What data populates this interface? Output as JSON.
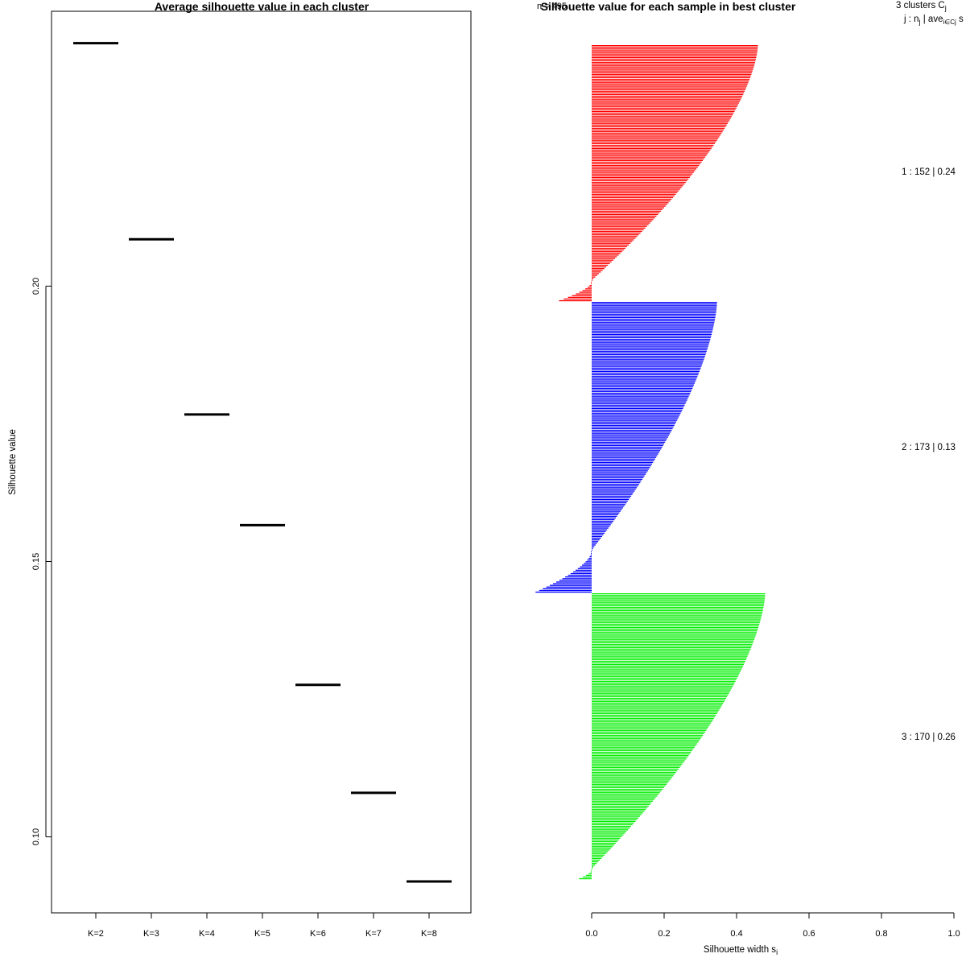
{
  "chart_data": [
    {
      "type": "line",
      "title": "Average silhouette value in each cluster",
      "xlabel": "",
      "ylabel": "Silhouette value",
      "ylim": [
        0.0862,
        0.2499
      ],
      "yticks": [
        0.1,
        0.15,
        0.2
      ],
      "ytick_labels": [
        "0.10",
        "0.15",
        "0.20"
      ],
      "categories": [
        "K=2",
        "K=3",
        "K=4",
        "K=5",
        "K=6",
        "K=7",
        "K=8"
      ],
      "values": [
        0.2441,
        0.2085,
        0.1767,
        0.1566,
        0.1276,
        0.108,
        0.0919
      ]
    },
    {
      "type": "bar",
      "title": "Silhouette value for each sample in best cluster",
      "overlay_label": "n = 495",
      "xlabel": "Silhouette width s",
      "xlabel_sub": "i",
      "xlim": [
        0.0,
        1.0
      ],
      "xticks": [
        0.0,
        0.2,
        0.4,
        0.6,
        0.8,
        1.0
      ],
      "xtick_labels": [
        "0.0",
        "0.2",
        "0.4",
        "0.6",
        "0.8",
        "1.0"
      ],
      "legend_header_1": "3  clusters  C",
      "legend_header_1_sub": "j",
      "legend_header_2a": "j :  n",
      "legend_header_2b": " | ave",
      "legend_header_2c": "  s",
      "legend_sub_j": "j",
      "legend_sub_iecj": "i∈Cj",
      "clusters": [
        {
          "id": 1,
          "n": 152,
          "avg_label": "0.24",
          "label": "1 :   152  |  0.24",
          "color": "#ff0000",
          "max": 0.455,
          "min": -0.09,
          "npos": 140
        },
        {
          "id": 2,
          "n": 173,
          "avg_label": "0.13",
          "label": "2 :   173  |  0.13",
          "color": "#0000ff",
          "max": 0.342,
          "min": -0.155,
          "npos": 148
        },
        {
          "id": 3,
          "n": 170,
          "avg_label": "0.26",
          "label": "3 :   170  |  0.26",
          "color": "#00ee00",
          "max": 0.475,
          "min": -0.035,
          "npos": 164
        }
      ]
    }
  ]
}
